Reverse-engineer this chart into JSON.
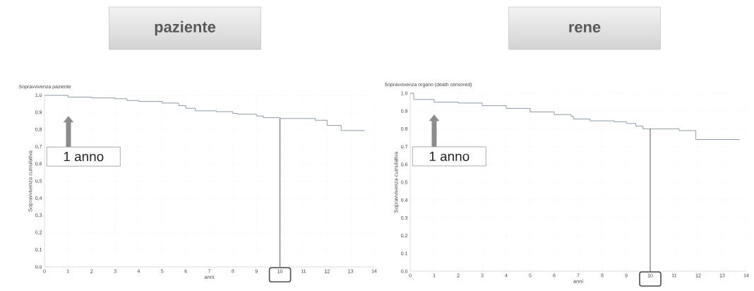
{
  "chart_data": [
    {
      "type": "step",
      "title": "paziente",
      "subtitle": "Sopravvivenza paziente",
      "xlabel": "anni",
      "ylabel": "Sopravvivenza cumulativa",
      "x": [
        0,
        1,
        2,
        3,
        3.5,
        4,
        5,
        5.7,
        6,
        6.4,
        7.3,
        8,
        8.2,
        9,
        9.3,
        10,
        11.5,
        12,
        12.6,
        13.6
      ],
      "values": [
        1.0,
        0.99,
        0.985,
        0.98,
        0.97,
        0.965,
        0.955,
        0.94,
        0.925,
        0.91,
        0.905,
        0.895,
        0.89,
        0.88,
        0.87,
        0.865,
        0.855,
        0.825,
        0.795,
        0.795
      ],
      "color": "#7f8fa0",
      "xlim": [
        0,
        14
      ],
      "ylim": [
        0,
        1.0
      ],
      "xticks": [
        0,
        1,
        2,
        3,
        4,
        5,
        6,
        7,
        8,
        9,
        10,
        11,
        12,
        13,
        14
      ],
      "yticks": [
        {
          "value": 0,
          "label": "0,0"
        },
        {
          "value": 0.1,
          "label": "0,1"
        },
        {
          "value": 0.2,
          "label": "0,2"
        },
        {
          "value": 0.3,
          "label": "0,3"
        },
        {
          "value": 0.4,
          "label": "0,4"
        },
        {
          "value": 0.5,
          "label": "0,5"
        },
        {
          "value": 0.6,
          "label": "0,6"
        },
        {
          "value": 0.7,
          "label": "0,7"
        },
        {
          "value": 0.8,
          "label": "0,8"
        },
        {
          "value": 0.9,
          "label": "0,9"
        },
        {
          "value": 1.0,
          "label": "1,0"
        }
      ],
      "grid": true,
      "ref_lines": [
        {
          "axis": "x",
          "value": 10
        }
      ],
      "annotations": [
        "1 anno"
      ]
    },
    {
      "type": "step",
      "title": "rene",
      "subtitle": "Sopravvivenza organo (death censored)",
      "xlabel": "anni",
      "ylabel": "Sopravvivenza cumulativa",
      "x": [
        0,
        0.15,
        1,
        2,
        3,
        4,
        5,
        6,
        6.7,
        6.8,
        7.5,
        8.5,
        9,
        9.4,
        9.7,
        11.2,
        11.9,
        13.7
      ],
      "values": [
        1.0,
        0.965,
        0.95,
        0.945,
        0.93,
        0.915,
        0.895,
        0.88,
        0.87,
        0.855,
        0.845,
        0.84,
        0.83,
        0.815,
        0.8,
        0.79,
        0.74,
        0.735
      ],
      "color": "#7f8fa0",
      "xlim": [
        0,
        14
      ],
      "ylim": [
        0,
        1.0
      ],
      "xticks": [
        0,
        1,
        2,
        3,
        4,
        5,
        6,
        7,
        8,
        9,
        10,
        11,
        12,
        13,
        14
      ],
      "yticks": [
        {
          "value": 0,
          "label": "0.0"
        },
        {
          "value": 0.1,
          "label": "0.1"
        },
        {
          "value": 0.2,
          "label": "0.2"
        },
        {
          "value": 0.3,
          "label": "0.3"
        },
        {
          "value": 0.4,
          "label": "0.4"
        },
        {
          "value": 0.5,
          "label": "0.5"
        },
        {
          "value": 0.6,
          "label": "0.6"
        },
        {
          "value": 0.7,
          "label": "0.7"
        },
        {
          "value": 0.8,
          "label": "0.8"
        },
        {
          "value": 0.9,
          "label": "0.9"
        },
        {
          "value": 1.0,
          "label": "1.0"
        }
      ],
      "grid": true,
      "ref_lines": [
        {
          "axis": "x",
          "value": 10
        }
      ],
      "annotations": [
        "1 anno"
      ]
    }
  ]
}
